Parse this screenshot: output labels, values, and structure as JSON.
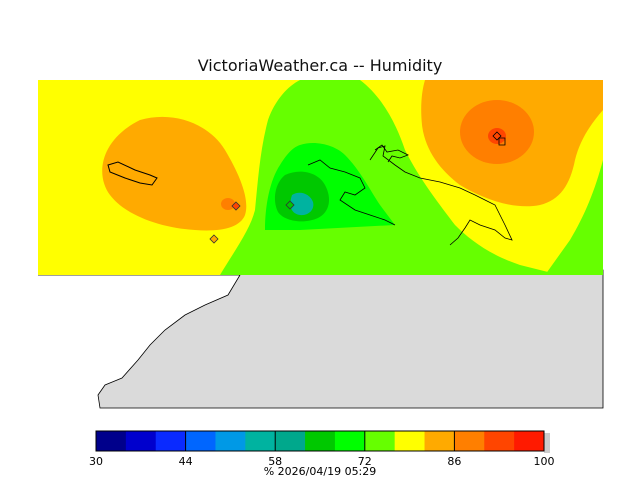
{
  "title": "VictoriaWeather.ca -- Humidity",
  "legend": {
    "ticks": [
      "30",
      "44",
      "58",
      "72",
      "86",
      "100"
    ],
    "caption": "%  2026/04/19 05:29",
    "colors": [
      "#00008b",
      "#0000cd",
      "#0a2aff",
      "#0066ff",
      "#0099e6",
      "#00b3a0",
      "#00a88c",
      "#00c800",
      "#00ff00",
      "#66ff00",
      "#ffff00",
      "#ffaa00",
      "#ff7f00",
      "#ff4500",
      "#ff1a00"
    ],
    "range": [
      30,
      100
    ]
  },
  "colors": {
    "land": "#dadada",
    "coast": "#000000",
    "background": "#ffffff"
  },
  "station_markers": [
    "diamond-marker",
    "diamond-marker",
    "diamond-marker",
    "diamond-marker"
  ]
}
